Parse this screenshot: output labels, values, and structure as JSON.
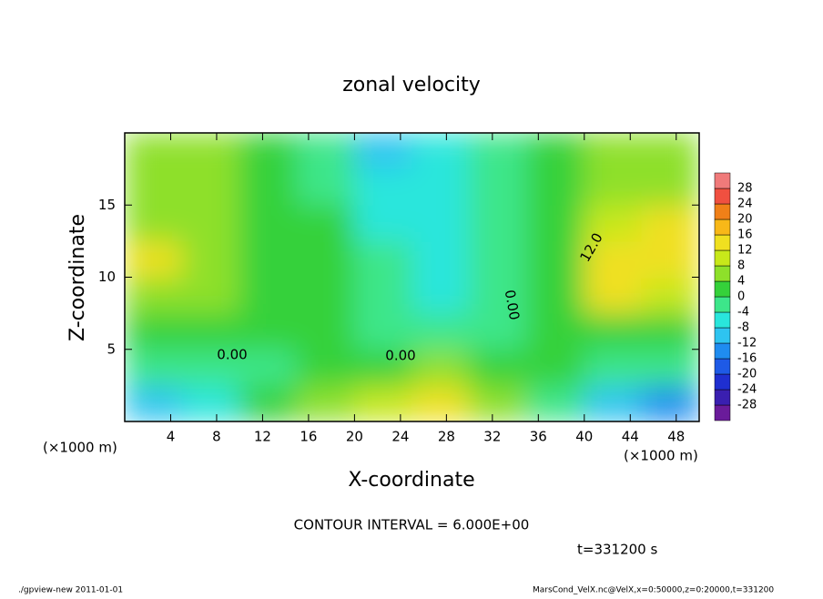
{
  "chart_data": {
    "type": "contour",
    "title": "zonal velocity",
    "x_label": "X-coordinate",
    "y_label": "Z-coordinate",
    "x_unit": "(×1000 m)",
    "xlim": [
      0,
      50
    ],
    "ylim": [
      0,
      20
    ],
    "xticks": [
      4,
      8,
      12,
      16,
      20,
      24,
      28,
      32,
      36,
      40,
      44,
      48
    ],
    "yticks": [
      5,
      10,
      15
    ],
    "field": {
      "x": [
        2.5,
        7.5,
        12.5,
        17.5,
        22.5,
        27.5,
        32.5,
        37.5,
        42.5,
        47.5
      ],
      "z": [
        1.25,
        3.75,
        6.25,
        8.75,
        11.25,
        13.75,
        16.25,
        18.75
      ],
      "values": [
        [
          -10,
          -6,
          2,
          6,
          10,
          12,
          4,
          -4,
          -10,
          -14
        ],
        [
          -2,
          -2,
          -2,
          0,
          2,
          4,
          2,
          0,
          -4,
          -4
        ],
        [
          2,
          2,
          2,
          0,
          -4,
          -4,
          -2,
          0,
          2,
          2
        ],
        [
          6,
          4,
          2,
          0,
          -4,
          -6,
          -2,
          2,
          12,
          10
        ],
        [
          14,
          6,
          2,
          0,
          -4,
          -6,
          -2,
          2,
          14,
          14
        ],
        [
          6,
          4,
          2,
          0,
          -6,
          -8,
          -2,
          2,
          10,
          12
        ],
        [
          4,
          4,
          0,
          -2,
          -8,
          -8,
          -2,
          2,
          6,
          6
        ],
        [
          4,
          4,
          0,
          -2,
          -10,
          -8,
          -2,
          2,
          4,
          6
        ]
      ]
    },
    "colorbar": {
      "levels": [
        -28,
        -24,
        -20,
        -16,
        -12,
        -8,
        -4,
        0,
        4,
        8,
        12,
        16,
        20,
        24,
        28
      ],
      "colors": [
        "#6a1b9a",
        "#3a1fb0",
        "#1f2fd0",
        "#1e5ae6",
        "#1f8cf0",
        "#2ec4f0",
        "#29e6dc",
        "#3de68a",
        "#35d13a",
        "#8ee02a",
        "#c8e81a",
        "#f0e020",
        "#f8b818",
        "#f08018",
        "#f05040",
        "#f07a7a"
      ]
    },
    "annotations": [
      "0.00",
      "0.00",
      "0.00",
      "12.0"
    ],
    "contour_interval": "CONTOUR INTERVAL = 6.000E+00",
    "time_label": "t=331200 s",
    "footer_left": "./gpview-new   2011-01-01",
    "footer_right": "MarsCond_VelX.nc@VelX,x=0:50000,z=0:20000,t=331200"
  }
}
